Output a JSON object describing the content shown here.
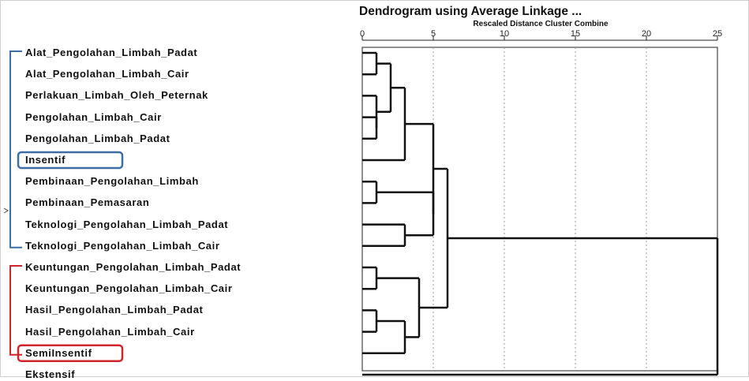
{
  "chart_data": {
    "type": "dendrogram",
    "title": "Dendrogram using Average Linkage ...",
    "xlabel": "Rescaled Distance Cluster Combine",
    "xlim": [
      0,
      25
    ],
    "xticks": [
      0,
      5,
      10,
      15,
      20,
      25
    ],
    "grid": "vertical dotted",
    "leaves": [
      "Alat_Pengolahan_Limbah_Padat",
      "Alat_Pengolahan_Limbah_Cair",
      "Perlakuan_Limbah_Oleh_Peternak",
      "Pengolahan_Limbah_Cair",
      "Pengolahan_Limbah_Padat",
      "Insentif",
      "Pembinaan_Pengolahan_Limbah",
      "Pembinaan_Pemasaran",
      "Teknologi_Pengolahan_Limbah_Padat",
      "Teknologi_Pengolahan_Limbah_Cair",
      "Keuntungan_Pengolahan_Limbah_Padat",
      "Keuntungan_Pengolahan_Limbah_Cair",
      "Hasil_Pengolahan_Limbah_Padat",
      "Hasil_Pengolahan_Limbah_Cair",
      "SemiInsentif",
      "Ekstensif"
    ],
    "merges": [
      {
        "a": "L0",
        "b": "L1",
        "h": 1
      },
      {
        "a": "L3",
        "b": "L4",
        "h": 1
      },
      {
        "a": "L6",
        "b": "L7",
        "h": 1
      },
      {
        "a": "L10",
        "b": "L11",
        "h": 1
      },
      {
        "a": "L12",
        "b": "L13",
        "h": 1
      },
      {
        "a": "N1",
        "b": "L2",
        "h": 1
      },
      {
        "a": "N0",
        "b": "N5",
        "h": 2
      },
      {
        "a": "N6",
        "b": "L5",
        "h": 3
      },
      {
        "a": "L8",
        "b": "L9",
        "h": 3
      },
      {
        "a": "N4",
        "b": "L14",
        "h": 3
      },
      {
        "a": "N3",
        "b": "N9",
        "h": 4
      },
      {
        "a": "N2",
        "b": "N8",
        "h": 5
      },
      {
        "a": "N7",
        "b": "N11",
        "h": 5
      },
      {
        "a": "N12",
        "b": "N10",
        "h": 6
      },
      {
        "a": "N13",
        "b": "L15",
        "h": 25
      }
    ],
    "groups": [
      {
        "color": "#3a6ea5",
        "from": 0,
        "to": 9,
        "highlight": 5
      },
      {
        "color": "#d0242c",
        "from": 10,
        "to": 14,
        "highlight": 14
      }
    ]
  }
}
